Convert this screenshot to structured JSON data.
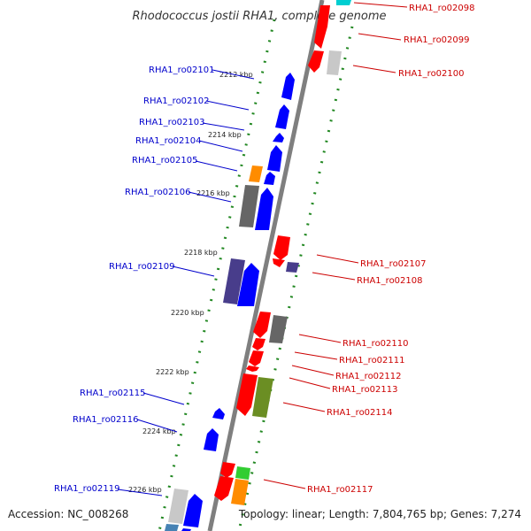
{
  "title": "Rhodococcus jostii RHA1, complete genome",
  "footer": {
    "accession": "Accession: NC_008268",
    "summary": "Topology: linear; Length: 7,804,765 bp; Genes: 7,274"
  },
  "kbp_labels": [
    "2212 kbp",
    "2214 kbp",
    "2216 kbp",
    "2218 kbp",
    "2220 kbp",
    "2222 kbp",
    "2224 kbp",
    "2226 kbp"
  ],
  "colors": {
    "backbone": "#888888",
    "tick": "#228822",
    "forward_label": "#0000cc",
    "reverse_label": "#cc0000",
    "blue": "#0000ff",
    "red": "#ff0000",
    "orange": "#ff8c00",
    "grey": "#666666",
    "light_grey": "#c8c8c8",
    "purple": "#483d8b",
    "olive": "#6b8e23",
    "green": "#32cd32",
    "cyan": "#00ced1",
    "steel": "#4682b4"
  },
  "genes": [
    {
      "name": "RHA1_ro02098",
      "strand": "-"
    },
    {
      "name": "RHA1_ro02099",
      "strand": "-"
    },
    {
      "name": "RHA1_ro02100",
      "strand": "-"
    },
    {
      "name": "RHA1_ro02101",
      "strand": "+"
    },
    {
      "name": "RHA1_ro02102",
      "strand": "+"
    },
    {
      "name": "RHA1_ro02103",
      "strand": "+"
    },
    {
      "name": "RHA1_ro02104",
      "strand": "+"
    },
    {
      "name": "RHA1_ro02105",
      "strand": "+"
    },
    {
      "name": "RHA1_ro02106",
      "strand": "+"
    },
    {
      "name": "RHA1_ro02107",
      "strand": "-"
    },
    {
      "name": "RHA1_ro02108",
      "strand": "-"
    },
    {
      "name": "RHA1_ro02109",
      "strand": "+"
    },
    {
      "name": "RHA1_ro02110",
      "strand": "-"
    },
    {
      "name": "RHA1_ro02111",
      "strand": "-"
    },
    {
      "name": "RHA1_ro02112",
      "strand": "-"
    },
    {
      "name": "RHA1_ro02113",
      "strand": "-"
    },
    {
      "name": "RHA1_ro02114",
      "strand": "-"
    },
    {
      "name": "RHA1_ro02115",
      "strand": "+"
    },
    {
      "name": "RHA1_ro02116",
      "strand": "+"
    },
    {
      "name": "RHA1_ro02117",
      "strand": "-"
    },
    {
      "name": "RHA1_ro02119",
      "strand": "+"
    }
  ]
}
